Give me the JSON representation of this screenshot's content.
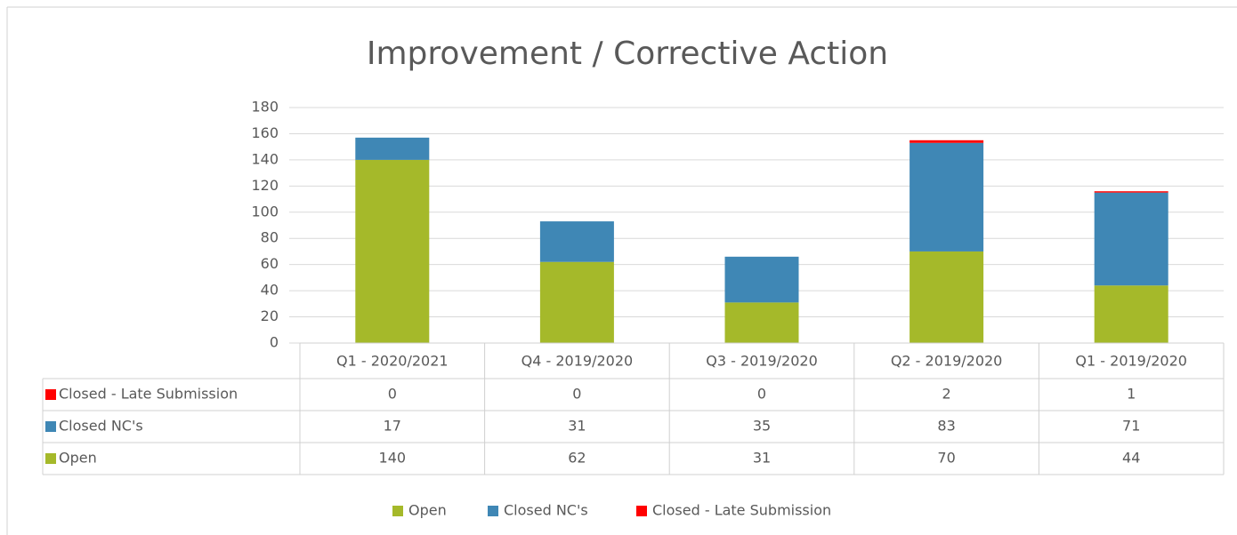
{
  "chart_data": {
    "type": "bar",
    "stacked": true,
    "title": "Improvement / Corrective Action",
    "categories": [
      "Q1 - 2020/2021",
      "Q4 - 2019/2020",
      "Q3 - 2019/2020",
      "Q2 - 2019/2020",
      "Q1 - 2019/2020"
    ],
    "series": [
      {
        "name": "Open",
        "color": "#a5b92a",
        "values": [
          140,
          62,
          31,
          70,
          44
        ]
      },
      {
        "name": "Closed NC's",
        "color": "#3f87b5",
        "values": [
          17,
          31,
          35,
          83,
          71
        ]
      },
      {
        "name": "Closed - Late Submission",
        "color": "#ff0000",
        "values": [
          0,
          0,
          0,
          2,
          1
        ]
      }
    ],
    "ylim": [
      0,
      180
    ],
    "yticks": [
      0,
      20,
      40,
      60,
      80,
      100,
      120,
      140,
      160,
      180
    ],
    "grid": true,
    "legend": "bottom",
    "data_table": true
  }
}
